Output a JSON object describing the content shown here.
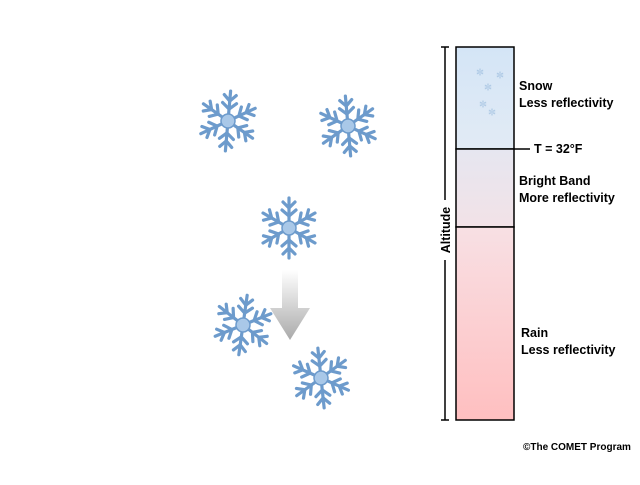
{
  "zones": [
    {
      "name": "Snow",
      "description": "Less reflectivity"
    },
    {
      "name": "Bright Band",
      "description": "More reflectivity"
    },
    {
      "name": "Rain",
      "description": "Less reflectivity"
    }
  ],
  "freezing_label": "T = 32°F",
  "axis_label": "Altitude",
  "credit": "©The COMET Program"
}
